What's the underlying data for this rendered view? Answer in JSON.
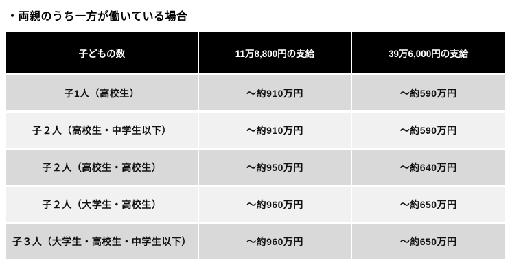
{
  "page": {
    "title": "・両親のうち一方が働いている場合"
  },
  "chart_data": {
    "type": "table",
    "title": "・両親のうち一方が働いている場合",
    "columns": [
      "子どもの数",
      "11万8,800円の支給",
      "39万6,000円の支給"
    ],
    "rows": [
      [
        "子1人（高校生）",
        "〜約910万円",
        "〜約590万円"
      ],
      [
        "子２人（高校生・中学生以下）",
        "〜約910万円",
        "〜約590万円"
      ],
      [
        "子２人（高校生・高校生）",
        "〜約950万円",
        "〜約640万円"
      ],
      [
        "子２人（大学生・高校生）",
        "〜約960万円",
        "〜約650万円"
      ],
      [
        "子３人（大学生・高校生・中学生以下）",
        "〜約960万円",
        "〜約650万円"
      ]
    ],
    "legend_position": "none",
    "grid": false
  },
  "colors": {
    "header_bg": "#000000",
    "header_text": "#ffffff",
    "row_dark": "#d9d9d9",
    "row_light": "#f1f1f1",
    "body_text": "#111111",
    "page_bg": "#ffffff"
  }
}
